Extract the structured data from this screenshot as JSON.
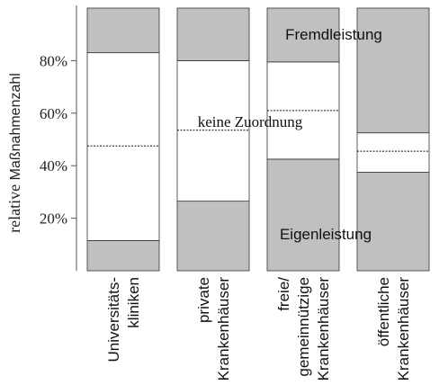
{
  "chart_data": {
    "type": "bar",
    "stacked": true,
    "ylabel_prefix": "relative ",
    "ylabel_main": "Maßnahmenzahl",
    "ylim": [
      0,
      100
    ],
    "ytick_values": [
      20,
      40,
      60,
      80
    ],
    "ytick_labels": [
      "20%",
      "40%",
      "60%",
      "80%"
    ],
    "categories": [
      [
        "Universitäts-",
        "kliniken"
      ],
      [
        "private",
        "Krankenhäuser"
      ],
      [
        "freie/",
        "gemeinnützige",
        "Krankenhäuser"
      ],
      [
        "öffentliche",
        "Krankenhäuser"
      ]
    ],
    "series": [
      {
        "name": "Eigenleistung",
        "values": [
          11.5,
          26.5,
          42.5,
          37.5
        ]
      },
      {
        "name": "keine Zuordnung",
        "values": [
          71.5,
          53.5,
          37,
          15
        ]
      },
      {
        "name": "Fremdleistung",
        "values": [
          17,
          20,
          20.5,
          47.5
        ]
      }
    ],
    "dashed_line_values": [
      47.5,
      53.5,
      61,
      45.5
    ],
    "colors": {
      "filled": "#c0c0c0",
      "empty": "#ffffff",
      "stroke": "#333333"
    },
    "grid": false
  }
}
